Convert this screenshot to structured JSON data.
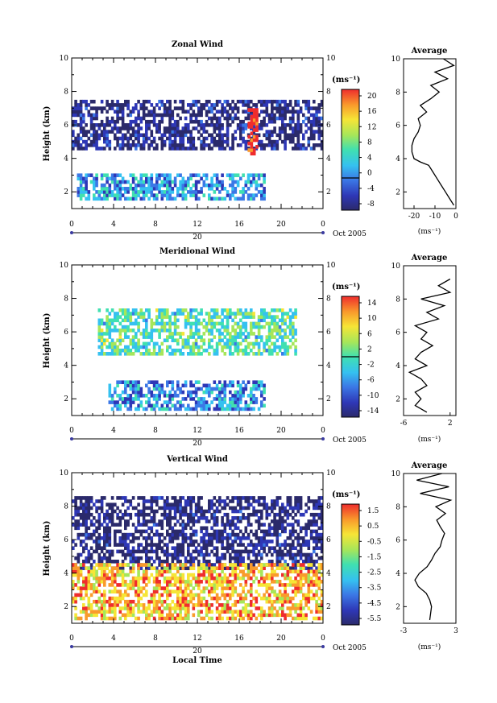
{
  "figure": {
    "bottom_label": "Local Time",
    "date_label": "Oct 2005",
    "day_label": "20"
  },
  "chart_data": [
    {
      "id": "zonal",
      "type": "heatmap",
      "title": "Zonal Wind",
      "xlabel": "",
      "ylabel": "Height (km)",
      "xlim": [
        0,
        24
      ],
      "ylim": [
        1,
        10
      ],
      "x_ticks": [
        "0",
        "4",
        "8",
        "12",
        "16",
        "20",
        "0"
      ],
      "y_ticks": [
        "2",
        "4",
        "6",
        "8",
        "10"
      ],
      "colorbar": {
        "unit": "(ms⁻¹)",
        "range": [
          -8,
          22
        ],
        "ticks": [
          "20",
          "16",
          "12",
          "8",
          "4",
          "0",
          "-4",
          "-8"
        ],
        "zero_line": 0
      },
      "regions": [
        {
          "desc": "mid-level band",
          "x": [
            0,
            24
          ],
          "y": [
            4.5,
            7.5
          ],
          "dominant": -6
        },
        {
          "desc": "strong eastward jet",
          "x": [
            16.8,
            17.8
          ],
          "y": [
            4.2,
            7.0
          ],
          "dominant": 22
        },
        {
          "desc": "low-level layer",
          "x": [
            0.5,
            18.5
          ],
          "y": [
            1.5,
            3.0
          ],
          "dominant": 2
        }
      ],
      "average_profile": {
        "title": "Average",
        "xlabel": "(ms⁻¹)",
        "xlim": [
          -25,
          0
        ],
        "x_ticks": [
          "-20",
          "-10",
          "0"
        ],
        "heights": [
          1.2,
          1.6,
          2.0,
          2.4,
          2.8,
          3.2,
          3.6,
          3.8,
          4.0,
          4.4,
          4.8,
          5.2,
          5.6,
          6.0,
          6.4,
          6.8,
          7.2,
          7.6,
          8.0,
          8.4,
          8.8,
          9.2,
          9.6,
          10.0
        ],
        "values": [
          -1,
          -3,
          -5,
          -7,
          -9,
          -11,
          -13,
          -17,
          -20,
          -21,
          -21,
          -20,
          -18,
          -17,
          -18,
          -14,
          -17,
          -12,
          -8,
          -12,
          -4,
          -10,
          -1,
          -6
        ]
      }
    },
    {
      "id": "meridional",
      "type": "heatmap",
      "title": "Meridional Wind",
      "xlabel": "",
      "ylabel": "Height (km)",
      "xlim": [
        0,
        24
      ],
      "ylim": [
        1,
        10
      ],
      "x_ticks": [
        "0",
        "4",
        "8",
        "12",
        "16",
        "20",
        "0"
      ],
      "y_ticks": [
        "2",
        "4",
        "6",
        "8",
        "10"
      ],
      "colorbar": {
        "unit": "(ms⁻¹)",
        "range": [
          -16,
          16
        ],
        "ticks": [
          "14",
          "10",
          "6",
          "2",
          "-2",
          "-6",
          "-10",
          "-14"
        ],
        "zero_line": 0
      },
      "regions": [
        {
          "desc": "mid-level cells",
          "x": [
            2.5,
            21.5
          ],
          "y": [
            4.6,
            7.4
          ],
          "dominant": 0
        },
        {
          "desc": "low-level flow",
          "x": [
            3.5,
            18.5
          ],
          "y": [
            1.3,
            3.0
          ],
          "dominant": -6
        }
      ],
      "average_profile": {
        "title": "Average",
        "xlabel": "(ms⁻¹)",
        "xlim": [
          -6,
          3
        ],
        "x_ticks": [
          "-6",
          "2"
        ],
        "heights": [
          1.2,
          1.6,
          2.0,
          2.4,
          2.8,
          3.2,
          3.6,
          4.0,
          4.4,
          4.8,
          5.2,
          5.6,
          6.0,
          6.4,
          6.8,
          7.2,
          7.6,
          8.0,
          8.4,
          8.8,
          9.2
        ],
        "values": [
          -2,
          -4,
          -3,
          -4,
          -2,
          -3,
          -5,
          -2,
          -4,
          -3,
          -1,
          -3,
          -2,
          -4,
          0,
          -2,
          1,
          -3,
          2,
          0,
          2
        ]
      }
    },
    {
      "id": "vertical",
      "type": "heatmap",
      "title": "Vertical Wind",
      "xlabel": "Local Time",
      "ylabel": "Height (km)",
      "xlim": [
        0,
        24
      ],
      "ylim": [
        1,
        10
      ],
      "x_ticks": [
        "0",
        "4",
        "8",
        "12",
        "16",
        "20",
        "0"
      ],
      "y_ticks": [
        "2",
        "4",
        "6",
        "8",
        "10"
      ],
      "colorbar": {
        "unit": "(ms⁻¹)",
        "range": [
          -7,
          2.5
        ],
        "ticks": [
          "1.5",
          "0.5",
          "-0.5",
          "-1.5",
          "-2.5",
          "-3.5",
          "-4.5",
          "-5.5"
        ],
        "zero_line": null
      },
      "regions": [
        {
          "desc": "mid-level band",
          "x": [
            0,
            24
          ],
          "y": [
            4.2,
            8.5
          ],
          "dominant": -6.5
        },
        {
          "desc": "low-level updraft",
          "x": [
            0,
            24
          ],
          "y": [
            1.2,
            4.5
          ],
          "dominant": 0.5
        }
      ],
      "average_profile": {
        "title": "Average",
        "xlabel": "(ms⁻¹)",
        "xlim": [
          -3,
          3
        ],
        "x_ticks": [
          "-3",
          "3"
        ],
        "heights": [
          1.2,
          1.6,
          2.0,
          2.4,
          2.8,
          3.2,
          3.6,
          4.0,
          4.4,
          4.8,
          5.2,
          5.6,
          6.0,
          6.4,
          6.8,
          7.2,
          7.6,
          8.0,
          8.4,
          8.8,
          9.2,
          9.6,
          10.0
        ],
        "values": [
          0,
          0.1,
          0.2,
          0,
          -0.4,
          -1.3,
          -1.7,
          -1.2,
          -0.3,
          0.2,
          0.6,
          1.2,
          1.4,
          1.7,
          1.2,
          0.8,
          1.8,
          0.7,
          2.4,
          -1.1,
          2.2,
          -1.5,
          1.4
        ]
      }
    }
  ]
}
